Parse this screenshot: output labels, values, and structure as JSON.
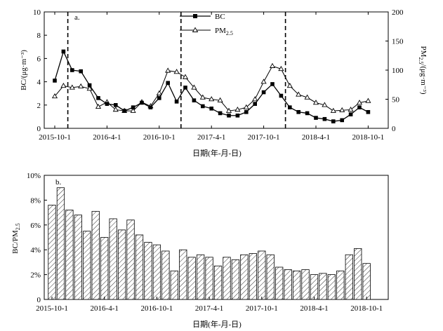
{
  "chart_data": [
    {
      "type": "line",
      "panel_label": "a.",
      "xlabel": "日期(年-月-日)",
      "ylabel_left": "BC/(μg·m⁻³)",
      "ylabel_right_main": "PM",
      "ylabel_right_sub": "2.5",
      "ylabel_right_tail": "/(μg·m⁻³)",
      "x_ticks": [
        "2015-10-1",
        "2016-4-1",
        "2016-10-1",
        "2017-4-1",
        "2017-10-1",
        "2018-4-1",
        "2018-10-1"
      ],
      "y_left_ticks": [
        "0",
        "2",
        "4",
        "6",
        "8",
        "10"
      ],
      "y_right_ticks": [
        "0",
        "50",
        "100",
        "150",
        "200"
      ],
      "ylim_left": [
        0,
        10
      ],
      "ylim_right": [
        0,
        200
      ],
      "x_start_month": "2015-10",
      "dashed_lines_after_month_index": [
        1.5,
        14.5,
        26.5
      ],
      "legend": [
        {
          "label": "BC",
          "marker": "filled-square"
        },
        {
          "label_main": "PM",
          "label_sub": "2.5",
          "marker": "open-triangle"
        }
      ],
      "series": [
        {
          "name": "BC",
          "axis": "left",
          "values": [
            4.1,
            6.6,
            5.0,
            4.9,
            3.7,
            2.6,
            2.1,
            2.0,
            1.5,
            1.8,
            2.2,
            1.8,
            2.6,
            3.9,
            2.3,
            3.5,
            2.4,
            1.9,
            1.7,
            1.3,
            1.1,
            1.1,
            1.4,
            2.1,
            3.1,
            3.8,
            2.8,
            1.8,
            1.4,
            1.3,
            0.9,
            0.8,
            0.6,
            0.7,
            1.2,
            1.8,
            1.4
          ]
        },
        {
          "name": "PM2.5",
          "axis": "right",
          "values": [
            55,
            73,
            70,
            72,
            68,
            37,
            45,
            32,
            30,
            30,
            45,
            38,
            60,
            99,
            97,
            88,
            70,
            53,
            50,
            48,
            30,
            32,
            36,
            50,
            80,
            107,
            102,
            73,
            58,
            53,
            44,
            40,
            30,
            31,
            32,
            44,
            47
          ]
        }
      ]
    },
    {
      "type": "bar",
      "panel_label": "b.",
      "xlabel": "日期(年-月-日)",
      "ylabel_main": "BC/PM",
      "ylabel_sub": "2.5",
      "x_ticks": [
        "2015-10-1",
        "2016-4-1",
        "2016-10-1",
        "2017-4-1",
        "2017-10-1",
        "2018-4-1",
        "2018-10-1"
      ],
      "y_ticks": [
        "0",
        "2%",
        "4%",
        "6%",
        "8%",
        "10%"
      ],
      "ylim": [
        0,
        10
      ],
      "x_start_month": "2015-10",
      "values": [
        7.6,
        9.0,
        7.2,
        6.8,
        5.5,
        7.1,
        5.0,
        6.5,
        5.6,
        6.4,
        5.2,
        4.6,
        4.4,
        3.9,
        2.3,
        4.0,
        3.4,
        3.6,
        3.4,
        2.7,
        3.4,
        3.2,
        3.6,
        3.7,
        3.9,
        3.6,
        2.6,
        2.4,
        2.3,
        2.4,
        2.0,
        2.1,
        2.0,
        2.3,
        3.6,
        4.1,
        2.9
      ]
    }
  ]
}
